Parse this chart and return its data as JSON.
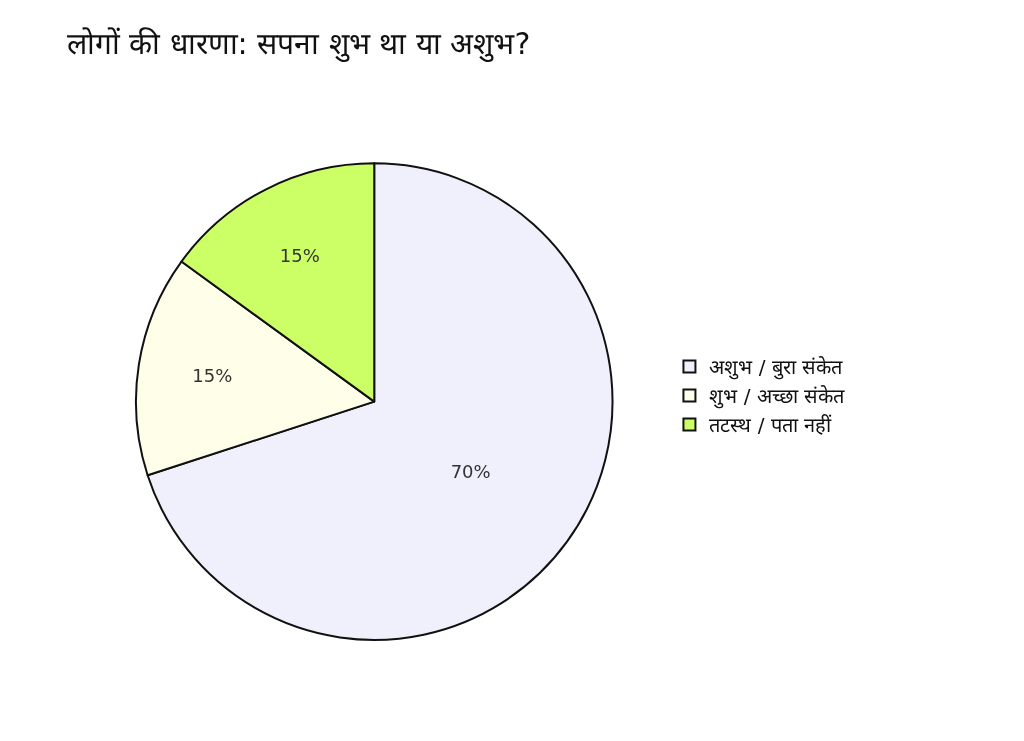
{
  "chart_data": {
    "type": "pie",
    "title": "लोगों की धारणा: सपना शुभ था या अशुभ?",
    "categories": [
      "अशुभ / बुरा संकेत",
      "शुभ / अच्छा संकेत",
      "तटस्थ / पता नहीं"
    ],
    "values": [
      70,
      15,
      15
    ],
    "value_labels": [
      "70%",
      "15%",
      "15%"
    ],
    "colors": [
      "#f0f0fc",
      "#ffffe9",
      "#ccff66"
    ],
    "legend": "right"
  }
}
